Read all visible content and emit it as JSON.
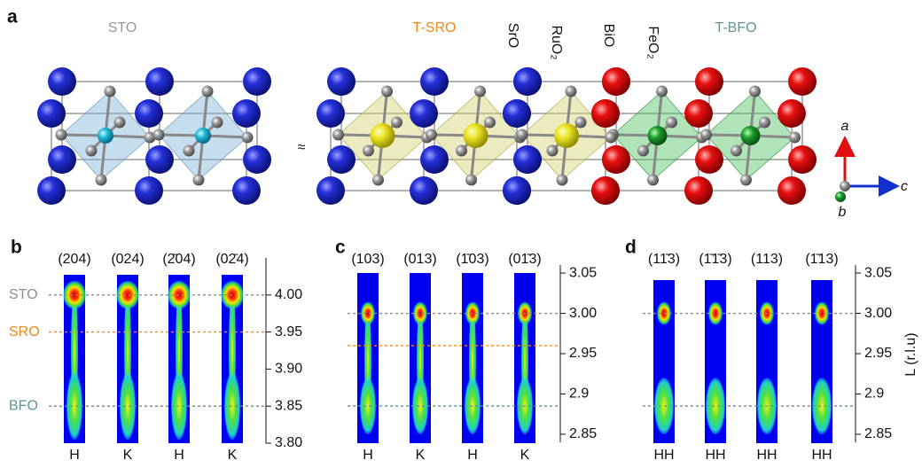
{
  "panel_a": {
    "label": "a",
    "sto": "STO",
    "tsro": "T-SRO",
    "layers": [
      "SrO",
      "RuO₂",
      "BiO",
      "FeO₂"
    ],
    "tbfo": "T-BFO",
    "approx": "≈",
    "axes": {
      "a": "a",
      "b": "b",
      "c": "c"
    }
  },
  "panels": [
    {
      "label": "b",
      "columns": [
        "(204)",
        "(024)",
        "(2̄04)",
        "(02̄4)"
      ],
      "xlabels": [
        "H",
        "K",
        "H",
        "K"
      ],
      "ylim": [
        3.8,
        4.05
      ],
      "yticks": [
        {
          "value": 3.8,
          "label": "3.80"
        },
        {
          "value": 3.85,
          "label": "3.85"
        },
        {
          "value": 3.9,
          "label": "3.90"
        },
        {
          "value": 3.95,
          "label": "3.95"
        },
        {
          "value": 4.0,
          "label": "4.00"
        }
      ],
      "references": [
        {
          "name": "STO",
          "value": 4.0,
          "color": "#8c8c8c"
        },
        {
          "name": "SRO",
          "value": 3.95,
          "color": "#f08a1c"
        },
        {
          "name": "BFO",
          "value": 3.85,
          "color": "#5f9497"
        }
      ]
    },
    {
      "label": "c",
      "columns": [
        "(103)",
        "(013)",
        "(1̄03)",
        "(01̄3)"
      ],
      "xlabels": [
        "H",
        "K",
        "H",
        "K"
      ],
      "ylim": [
        2.84,
        3.06
      ],
      "yticks": [
        {
          "value": 2.85,
          "label": "2.85"
        },
        2.9,
        2.95,
        {
          "value": 3.0,
          "label": "3.00"
        },
        3.05
      ],
      "references": [
        {
          "value": 3.0,
          "color": "#8c8c8c"
        },
        {
          "value": 2.96,
          "color": "#f08a1c"
        },
        {
          "value": 2.885,
          "color": "#5f9497"
        }
      ]
    },
    {
      "label": "d",
      "columns": [
        "(11̄3)",
        "(1̄1̄3)",
        "(113)",
        "(1̄13)"
      ],
      "xlabels": [
        "HH",
        "HH",
        "HH",
        "HH"
      ],
      "ylim": [
        2.84,
        3.06
      ],
      "yticks": [
        {
          "value": 2.85,
          "label": "2.85"
        },
        2.9,
        2.95,
        {
          "value": 3.0,
          "label": "3.00"
        },
        3.05
      ],
      "references": [
        {
          "value": 3.0,
          "color": "#8c8c8c"
        },
        {
          "value": 2.885,
          "color": "#5f9497"
        }
      ],
      "y_label": "L (r.l.u)"
    }
  ]
}
